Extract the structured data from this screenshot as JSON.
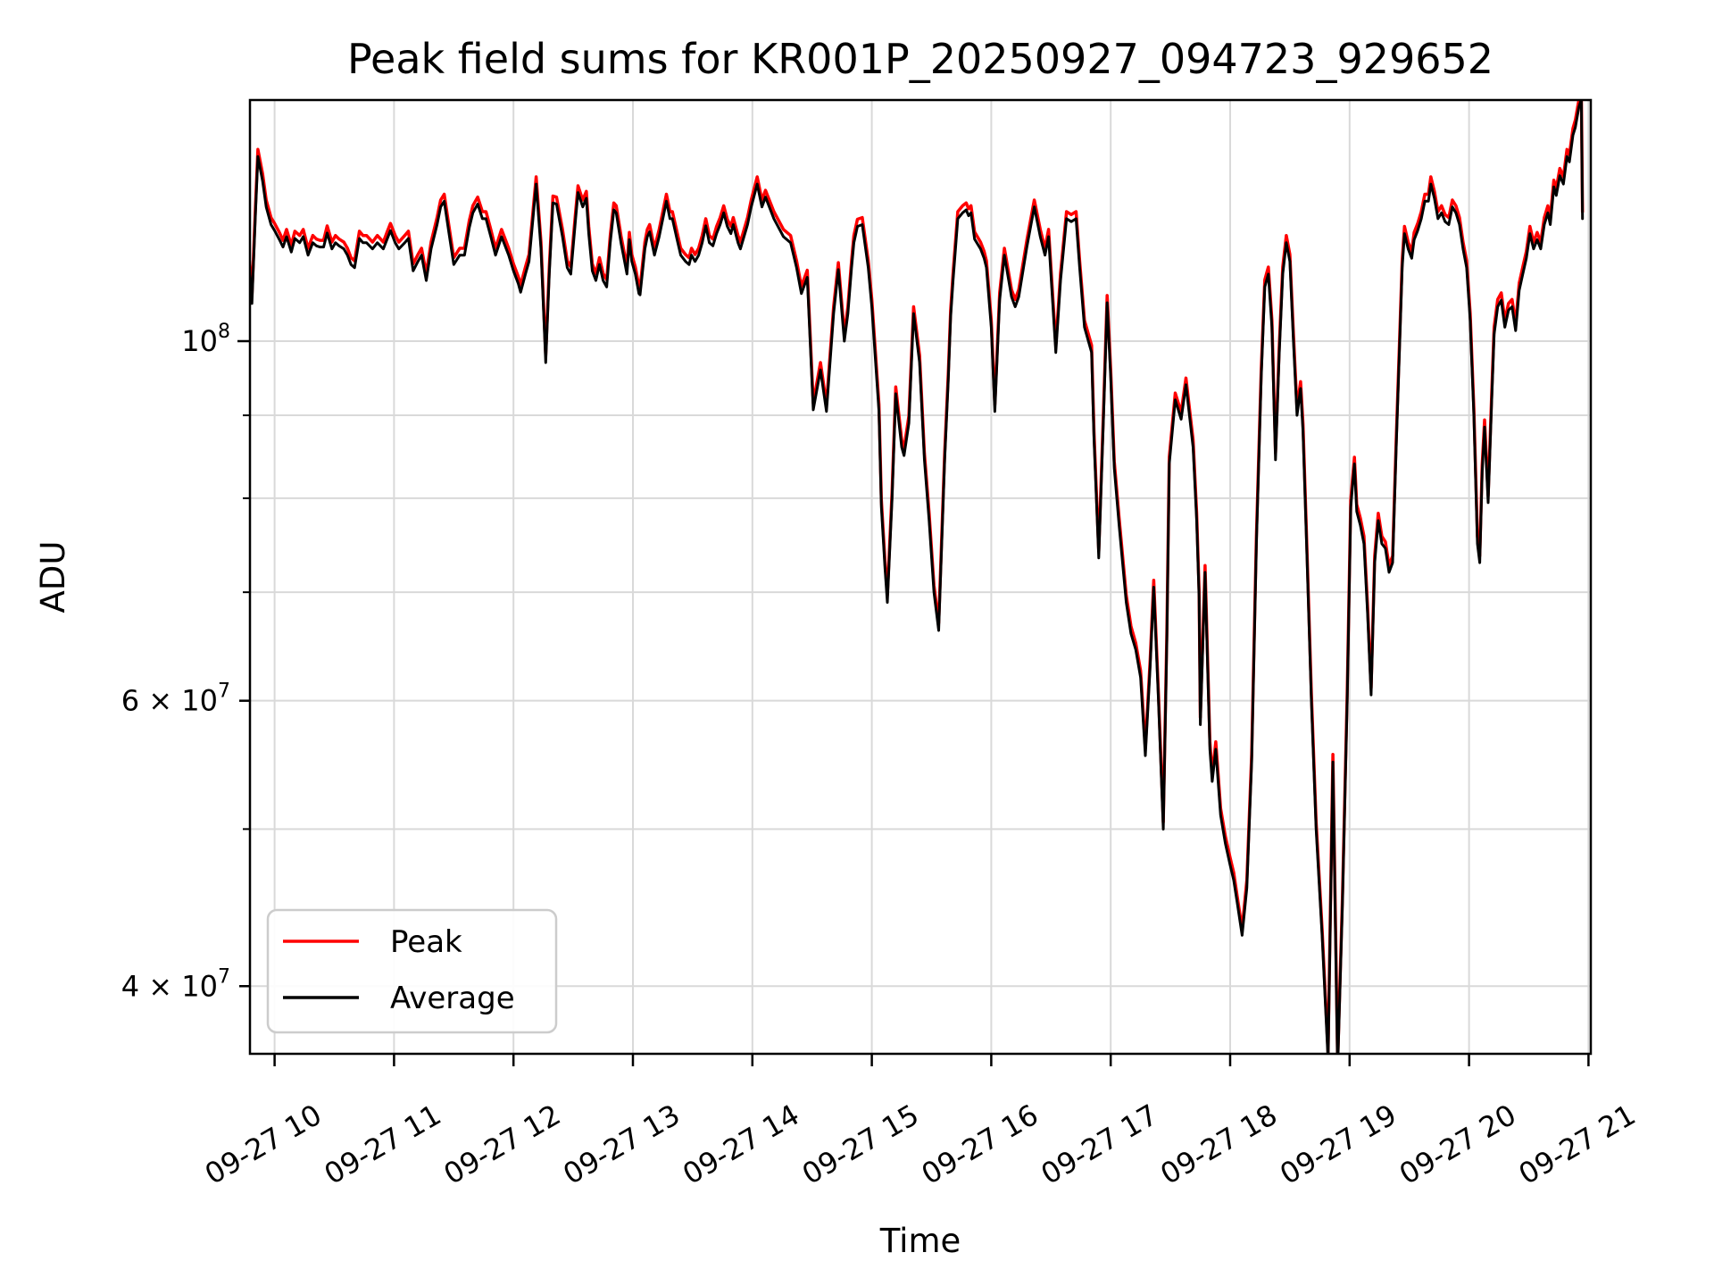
{
  "chart_data": {
    "type": "line",
    "title": "Peak field sums for KR001P_20250927_094723_929652",
    "xlabel": "Time",
    "ylabel": "ADU",
    "grid": true,
    "legend_position": "lower left",
    "background": "#ffffff",
    "x_axis": {
      "unit": "time of day on 09-27, decimal hours",
      "range_hours": [
        9.79,
        21.02
      ],
      "label_rotation_deg": 30,
      "ticks": [
        {
          "hour": 10,
          "label": "09-27 10"
        },
        {
          "hour": 11,
          "label": "09-27 11"
        },
        {
          "hour": 12,
          "label": "09-27 12"
        },
        {
          "hour": 13,
          "label": "09-27 13"
        },
        {
          "hour": 14,
          "label": "09-27 14"
        },
        {
          "hour": 15,
          "label": "09-27 15"
        },
        {
          "hour": 16,
          "label": "09-27 16"
        },
        {
          "hour": 17,
          "label": "09-27 17"
        },
        {
          "hour": 18,
          "label": "09-27 18"
        },
        {
          "hour": 19,
          "label": "09-27 19"
        },
        {
          "hour": 20,
          "label": "09-27 20"
        },
        {
          "hour": 21,
          "label": "09-27 21"
        }
      ]
    },
    "y_axis": {
      "scale": "log",
      "unit": "ADU",
      "range": [
        36400000.0,
        141000000.0
      ],
      "labeled_ticks": [
        {
          "base": "10",
          "exp": "8",
          "value_1e7": 10,
          "length": 14
        },
        {
          "base": "6 × 10",
          "exp": "7",
          "value_1e7": 6,
          "length": 12
        },
        {
          "base": "4 × 10",
          "exp": "7",
          "value_1e7": 4,
          "length": 12
        }
      ],
      "unlabeled_minor_tick_values_1e7": [
        9,
        8,
        7,
        5
      ],
      "gridline_values_1e7": [
        4,
        5,
        6,
        7,
        8,
        9,
        10
      ]
    },
    "x_hours": [
      9.79,
      9.81,
      9.84,
      9.86,
      9.9,
      9.93,
      9.97,
      10.0,
      10.04,
      10.07,
      10.1,
      10.14,
      10.17,
      10.21,
      10.24,
      10.28,
      10.32,
      10.35,
      10.38,
      10.41,
      10.44,
      10.48,
      10.51,
      10.54,
      10.58,
      10.61,
      10.64,
      10.67,
      10.71,
      10.74,
      10.77,
      10.82,
      10.86,
      10.91,
      10.94,
      10.97,
      11.01,
      11.04,
      11.09,
      11.12,
      11.16,
      11.2,
      11.23,
      11.27,
      11.31,
      11.36,
      11.39,
      11.42,
      11.46,
      11.5,
      11.55,
      11.59,
      11.63,
      11.66,
      11.7,
      11.74,
      11.77,
      11.81,
      11.85,
      11.9,
      11.96,
      12.0,
      12.04,
      12.06,
      12.1,
      12.13,
      12.19,
      12.23,
      12.27,
      12.3,
      12.33,
      12.36,
      12.41,
      12.45,
      12.48,
      12.52,
      12.54,
      12.58,
      12.61,
      12.63,
      12.66,
      12.69,
      12.72,
      12.75,
      12.78,
      12.81,
      12.84,
      12.86,
      12.9,
      12.92,
      12.95,
      12.97,
      12.99,
      13.02,
      13.05,
      13.06,
      13.1,
      13.12,
      13.14,
      13.18,
      13.22,
      13.25,
      13.28,
      13.31,
      13.33,
      13.37,
      13.4,
      13.44,
      13.47,
      13.49,
      13.52,
      13.55,
      13.58,
      13.61,
      13.64,
      13.67,
      13.7,
      13.73,
      13.76,
      13.79,
      13.82,
      13.84,
      13.88,
      13.9,
      13.96,
      13.99,
      14.04,
      14.08,
      14.11,
      14.18,
      14.26,
      14.32,
      14.37,
      14.41,
      14.46,
      14.51,
      14.57,
      14.62,
      14.68,
      14.72,
      14.77,
      14.8,
      14.83,
      14.85,
      14.88,
      14.92,
      14.97,
      15.0,
      15.03,
      15.06,
      15.08,
      15.11,
      15.13,
      15.17,
      15.2,
      15.25,
      15.27,
      15.31,
      15.35,
      15.4,
      15.44,
      15.48,
      15.52,
      15.56,
      15.61,
      15.64,
      15.66,
      15.68,
      15.72,
      15.76,
      15.79,
      15.81,
      15.83,
      15.86,
      15.91,
      15.94,
      15.96,
      16.0,
      16.03,
      16.07,
      16.11,
      16.17,
      16.2,
      16.23,
      16.3,
      16.36,
      16.41,
      16.45,
      16.48,
      16.54,
      16.58,
      16.63,
      16.67,
      16.71,
      16.74,
      16.78,
      16.84,
      16.86,
      16.9,
      16.94,
      16.97,
      17.0,
      17.03,
      17.07,
      17.13,
      17.17,
      17.21,
      17.25,
      17.29,
      17.33,
      17.36,
      17.4,
      17.44,
      17.47,
      17.49,
      17.54,
      17.59,
      17.63,
      17.69,
      17.72,
      17.74,
      17.75,
      17.79,
      17.83,
      17.85,
      17.88,
      17.92,
      17.96,
      18.0,
      18.03,
      18.06,
      18.1,
      18.14,
      18.18,
      18.22,
      18.26,
      18.29,
      18.32,
      18.35,
      18.38,
      18.41,
      18.44,
      18.47,
      18.5,
      18.53,
      18.56,
      18.59,
      18.61,
      18.64,
      18.68,
      18.72,
      18.77,
      18.82,
      18.86,
      18.9,
      18.94,
      18.98,
      19.01,
      19.04,
      19.06,
      19.09,
      19.12,
      19.15,
      19.18,
      19.21,
      19.24,
      19.27,
      19.3,
      19.33,
      19.36,
      19.39,
      19.42,
      19.44,
      19.46,
      19.49,
      19.52,
      19.54,
      19.57,
      19.6,
      19.63,
      19.66,
      19.68,
      19.71,
      19.74,
      19.77,
      19.8,
      19.83,
      19.86,
      19.89,
      19.92,
      19.95,
      19.98,
      20.01,
      20.04,
      20.07,
      20.09,
      20.11,
      20.13,
      20.16,
      20.19,
      20.21,
      20.24,
      20.27,
      20.3,
      20.33,
      20.36,
      20.39,
      20.42,
      20.45,
      20.48,
      20.51,
      20.54,
      20.57,
      20.6,
      20.63,
      20.66,
      20.68,
      20.71,
      20.73,
      20.76,
      20.79,
      20.82,
      20.84,
      20.87,
      20.89,
      20.92,
      20.94,
      20.95
    ],
    "series": [
      {
        "name": "Peak",
        "color": "#ff0000",
        "values_1e7": [
          11.21,
          10.66,
          12.12,
          13.13,
          12.68,
          12.22,
          11.92,
          11.82,
          11.67,
          11.54,
          11.72,
          11.46,
          11.69,
          11.62,
          11.72,
          11.41,
          11.62,
          11.56,
          11.54,
          11.54,
          11.78,
          11.51,
          11.62,
          11.56,
          11.51,
          11.41,
          11.26,
          11.21,
          11.69,
          11.62,
          11.62,
          11.51,
          11.62,
          11.51,
          11.67,
          11.82,
          11.62,
          11.51,
          11.62,
          11.69,
          11.16,
          11.31,
          11.41,
          11.01,
          11.51,
          11.92,
          12.22,
          12.32,
          11.78,
          11.26,
          11.41,
          11.41,
          11.87,
          12.12,
          12.27,
          12.02,
          12.02,
          11.72,
          11.41,
          11.72,
          11.41,
          11.16,
          10.96,
          10.83,
          11.11,
          11.31,
          12.63,
          11.51,
          9.8,
          11.11,
          12.29,
          12.27,
          11.72,
          11.21,
          11.11,
          12.02,
          12.47,
          12.22,
          12.37,
          11.77,
          11.16,
          11.01,
          11.26,
          11.01,
          10.91,
          11.62,
          12.17,
          12.12,
          11.62,
          11.41,
          11.11,
          11.67,
          11.31,
          11.11,
          10.81,
          10.79,
          11.51,
          11.72,
          11.8,
          11.41,
          11.72,
          12.02,
          12.32,
          12.02,
          12.02,
          11.67,
          11.41,
          11.31,
          11.26,
          11.41,
          11.31,
          11.41,
          11.62,
          11.9,
          11.62,
          11.56,
          11.77,
          11.92,
          12.12,
          11.89,
          11.77,
          11.92,
          11.62,
          11.51,
          11.92,
          12.22,
          12.63,
          12.22,
          12.39,
          12.02,
          11.72,
          11.62,
          11.21,
          10.81,
          11.06,
          9.16,
          9.7,
          9.14,
          10.5,
          11.18,
          10.1,
          10.5,
          11.21,
          11.62,
          11.89,
          11.92,
          11.21,
          10.61,
          9.85,
          9.14,
          7.98,
          7.32,
          6.97,
          8.08,
          9.37,
          8.69,
          8.59,
          8.99,
          10.5,
          9.8,
          8.53,
          7.83,
          7.07,
          6.7,
          8.53,
          9.54,
          10.45,
          11.01,
          12.02,
          12.12,
          12.17,
          12.07,
          12.12,
          11.68,
          11.51,
          11.36,
          11.21,
          10.3,
          9.14,
          10.71,
          11.41,
          10.76,
          10.61,
          10.76,
          11.56,
          12.22,
          11.72,
          11.41,
          11.72,
          9.94,
          11.01,
          12.02,
          11.97,
          12.02,
          11.21,
          10.3,
          9.94,
          8.79,
          7.42,
          9.09,
          10.67,
          9.6,
          8.43,
          7.78,
          6.97,
          6.67,
          6.51,
          6.26,
          5.61,
          6.36,
          7.12,
          6.06,
          5.05,
          6.62,
          8.48,
          9.29,
          9.04,
          9.49,
          8.69,
          7.83,
          7.02,
          5.86,
          7.27,
          5.66,
          5.4,
          5.66,
          5.15,
          4.95,
          4.8,
          4.7,
          4.54,
          4.34,
          4.65,
          5.56,
          7.58,
          9.6,
          10.91,
          11.11,
          10.3,
          8.53,
          9.9,
          11.11,
          11.62,
          11.31,
          10.1,
          9.09,
          9.44,
          8.89,
          7.58,
          6.06,
          5.05,
          4.34,
          3.64,
          5.56,
          3.59,
          4.54,
          6.06,
          7.98,
          8.48,
          7.93,
          7.78,
          7.58,
          6.87,
          6.11,
          7.37,
          7.83,
          7.58,
          7.52,
          7.27,
          7.37,
          8.69,
          10.1,
          11.21,
          11.77,
          11.51,
          11.36,
          11.67,
          11.82,
          12.02,
          12.32,
          12.32,
          12.63,
          12.37,
          12.02,
          12.12,
          11.97,
          11.92,
          12.22,
          12.12,
          11.92,
          11.51,
          11.21,
          10.4,
          9.09,
          7.58,
          7.37,
          8.38,
          8.94,
          8.03,
          9.29,
          10.2,
          10.61,
          10.71,
          10.3,
          10.55,
          10.61,
          10.25,
          10.86,
          11.11,
          11.36,
          11.77,
          11.51,
          11.67,
          11.51,
          11.92,
          12.12,
          11.92,
          12.57,
          12.42,
          12.78,
          12.63,
          13.13,
          13.03,
          13.53,
          13.69,
          14.09,
          14.24,
          12.02
        ]
      },
      {
        "name": "Average",
        "color": "#000000",
        "values_1e7": [
          11.1,
          10.55,
          12.0,
          13.0,
          12.55,
          12.1,
          11.8,
          11.7,
          11.55,
          11.43,
          11.6,
          11.35,
          11.57,
          11.5,
          11.6,
          11.3,
          11.5,
          11.45,
          11.43,
          11.43,
          11.66,
          11.4,
          11.5,
          11.45,
          11.4,
          11.3,
          11.15,
          11.1,
          11.57,
          11.5,
          11.5,
          11.4,
          11.5,
          11.4,
          11.55,
          11.7,
          11.5,
          11.4,
          11.5,
          11.57,
          11.05,
          11.2,
          11.3,
          10.9,
          11.4,
          11.8,
          12.1,
          12.2,
          11.66,
          11.15,
          11.3,
          11.3,
          11.75,
          12.0,
          12.15,
          11.9,
          11.9,
          11.6,
          11.3,
          11.6,
          11.3,
          11.05,
          10.85,
          10.72,
          11.0,
          11.2,
          12.5,
          11.4,
          9.7,
          11.0,
          12.17,
          12.15,
          11.6,
          11.1,
          11.0,
          11.9,
          12.35,
          12.1,
          12.25,
          11.65,
          11.05,
          10.9,
          11.15,
          10.9,
          10.8,
          11.5,
          12.05,
          12.0,
          11.5,
          11.3,
          11.0,
          11.55,
          11.2,
          11.0,
          10.7,
          10.68,
          11.4,
          11.6,
          11.68,
          11.3,
          11.6,
          11.9,
          12.2,
          11.9,
          11.9,
          11.55,
          11.3,
          11.2,
          11.15,
          11.3,
          11.2,
          11.3,
          11.5,
          11.78,
          11.5,
          11.45,
          11.65,
          11.8,
          12.0,
          11.77,
          11.65,
          11.8,
          11.5,
          11.4,
          11.8,
          12.1,
          12.5,
          12.1,
          12.27,
          11.9,
          11.6,
          11.5,
          11.1,
          10.7,
          10.95,
          9.07,
          9.6,
          9.05,
          10.4,
          11.07,
          10.0,
          10.4,
          11.1,
          11.5,
          11.77,
          11.8,
          11.1,
          10.5,
          9.75,
          9.05,
          7.9,
          7.25,
          6.9,
          8.0,
          9.28,
          8.6,
          8.5,
          8.9,
          10.4,
          9.7,
          8.45,
          7.75,
          7.0,
          6.63,
          8.45,
          9.45,
          10.35,
          10.9,
          11.9,
          12.0,
          12.05,
          11.95,
          12.0,
          11.56,
          11.4,
          11.25,
          11.1,
          10.2,
          9.05,
          10.6,
          11.3,
          10.65,
          10.5,
          10.65,
          11.45,
          12.1,
          11.6,
          11.3,
          11.6,
          9.84,
          10.9,
          11.9,
          11.85,
          11.9,
          11.1,
          10.2,
          9.84,
          8.7,
          7.35,
          9.0,
          10.56,
          9.5,
          8.35,
          7.7,
          6.9,
          6.6,
          6.45,
          6.2,
          5.55,
          6.3,
          7.05,
          6.0,
          5.0,
          6.55,
          8.4,
          9.2,
          8.95,
          9.4,
          8.6,
          7.75,
          6.95,
          5.8,
          7.2,
          5.6,
          5.35,
          5.6,
          5.1,
          4.9,
          4.75,
          4.65,
          4.5,
          4.3,
          4.6,
          5.5,
          7.5,
          9.5,
          10.8,
          11.0,
          10.2,
          8.45,
          9.8,
          11.0,
          11.5,
          11.2,
          10.0,
          9.0,
          9.35,
          8.8,
          7.5,
          6.0,
          5.0,
          4.3,
          3.6,
          5.5,
          3.55,
          4.5,
          6.0,
          7.9,
          8.4,
          7.85,
          7.7,
          7.5,
          6.8,
          6.05,
          7.3,
          7.75,
          7.5,
          7.45,
          7.2,
          7.3,
          8.6,
          10.0,
          11.1,
          11.65,
          11.4,
          11.25,
          11.55,
          11.7,
          11.9,
          12.2,
          12.2,
          12.5,
          12.25,
          11.9,
          12.0,
          11.85,
          11.8,
          12.1,
          12.0,
          11.8,
          11.4,
          11.1,
          10.3,
          9.0,
          7.5,
          7.3,
          8.3,
          8.85,
          7.95,
          9.2,
          10.1,
          10.5,
          10.6,
          10.2,
          10.45,
          10.5,
          10.15,
          10.75,
          11.0,
          11.25,
          11.65,
          11.4,
          11.55,
          11.4,
          11.8,
          12.0,
          11.8,
          12.45,
          12.3,
          12.65,
          12.5,
          13.0,
          12.9,
          13.4,
          13.55,
          13.95,
          14.1,
          11.9
        ]
      }
    ]
  },
  "legend": {
    "items": [
      {
        "label": "Peak",
        "color": "#ff0000"
      },
      {
        "label": "Average",
        "color": "#000000"
      }
    ]
  },
  "style": {
    "grid_color": "#d9d9d9",
    "spine_color": "#000000",
    "legend_border_color": "#cccccc",
    "legend_fill": "#ffffff"
  }
}
